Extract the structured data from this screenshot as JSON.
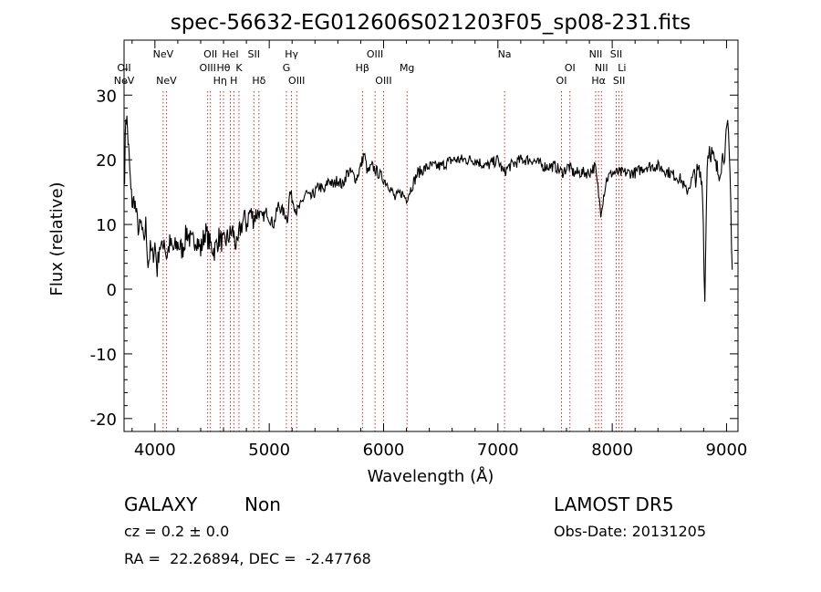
{
  "chart_data": {
    "type": "line",
    "title": "spec-56632-EG012606S021203F05_sp08-231.fits",
    "xlabel": "Wavelength (Å)",
    "ylabel": "Flux (relative)",
    "xlim": [
      3730,
      9100
    ],
    "ylim": [
      -22,
      38.5
    ],
    "xticks": [
      4000,
      5000,
      6000,
      7000,
      8000,
      9000
    ],
    "yticks": [
      -20,
      -10,
      0,
      10,
      20,
      30
    ],
    "series": [
      {
        "x": [
          3735,
          3745,
          3755,
          3765,
          3775,
          3790,
          3805,
          3820,
          3840,
          3860,
          3880,
          3900,
          3920,
          3940,
          3960,
          3980,
          4000,
          4020,
          4040,
          4060,
          4080,
          4100,
          4130,
          4160,
          4200,
          4240,
          4280,
          4320,
          4360,
          4400,
          4440,
          4480,
          4520,
          4560,
          4600,
          4640,
          4680,
          4720,
          4740,
          4760,
          4780,
          4800,
          4830,
          4860,
          4900,
          4940,
          4980,
          5000,
          5040,
          5080,
          5120,
          5160,
          5180,
          5200,
          5240,
          5280,
          5320,
          5360,
          5400,
          5440,
          5480,
          5520,
          5560,
          5600,
          5640,
          5680,
          5720,
          5760,
          5800,
          5830,
          5860,
          5900,
          5950,
          6000,
          6050,
          6100,
          6150,
          6200,
          6250,
          6300,
          6400,
          6500,
          6600,
          6700,
          6800,
          6900,
          7000,
          7050,
          7100,
          7200,
          7300,
          7400,
          7500,
          7560,
          7620,
          7660,
          7700,
          7800,
          7850,
          7900,
          7950,
          8000,
          8100,
          8200,
          8300,
          8400,
          8500,
          8600,
          8650,
          8700,
          8760,
          8790,
          8810,
          8830,
          8850,
          8870,
          8900,
          8930,
          8960,
          8990,
          9010,
          9030,
          9050
        ],
        "y": [
          18,
          27,
          26,
          23,
          20,
          15,
          13,
          14,
          11,
          9,
          10,
          7,
          10,
          4,
          6,
          5,
          7,
          3,
          7,
          6,
          8,
          5,
          7,
          6,
          7,
          6,
          9,
          7,
          8,
          6,
          9,
          7,
          6,
          8,
          7,
          8,
          9,
          6,
          9,
          10,
          11,
          10,
          12,
          11,
          12,
          11,
          12,
          11,
          10,
          13,
          12,
          11,
          15,
          14,
          12,
          13,
          15,
          14,
          15,
          16,
          15,
          17,
          16,
          17,
          16,
          18,
          18,
          17,
          19,
          21,
          18,
          19,
          18,
          17,
          16,
          14,
          15,
          14,
          16,
          18,
          19,
          19,
          20,
          20,
          20,
          19,
          20,
          18,
          19,
          20,
          20,
          19,
          19,
          18,
          19,
          18,
          18,
          18,
          19,
          12,
          17,
          18,
          18,
          18,
          19,
          19,
          18,
          17,
          15,
          17,
          18,
          16,
          -2,
          20,
          22,
          21,
          19,
          18,
          20,
          22,
          25,
          18,
          3
        ]
      }
    ],
    "lines": [
      {
        "label": "NeV",
        "x": 3726
      },
      {
        "label": "OII",
        "x": 3729
      },
      {
        "label": "NeV",
        "x": 4072
      },
      {
        "label": "NeV",
        "x": 4100
      },
      {
        "label": "OIII",
        "x": 4462
      },
      {
        "label": "OII",
        "x": 4486
      },
      {
        "label": "Hη",
        "x": 4570
      },
      {
        "label": "Hθ",
        "x": 4600
      },
      {
        "label": "HeI",
        "x": 4660
      },
      {
        "label": "H",
        "x": 4690
      },
      {
        "label": "K",
        "x": 4735
      },
      {
        "label": "SII",
        "x": 4865
      },
      {
        "label": "Hδ",
        "x": 4910
      },
      {
        "label": "G",
        "x": 5150
      },
      {
        "label": "Hγ",
        "x": 5195
      },
      {
        "label": "OIII",
        "x": 5240
      },
      {
        "label": "Hβ",
        "x": 5815
      },
      {
        "label": "OIII",
        "x": 5925
      },
      {
        "label": "OIII",
        "x": 6000
      },
      {
        "label": "Mg",
        "x": 6205
      },
      {
        "label": "Na",
        "x": 7058
      },
      {
        "label": "OI",
        "x": 7556
      },
      {
        "label": "OI",
        "x": 7630
      },
      {
        "label": "NII",
        "x": 7855
      },
      {
        "label": "Hα",
        "x": 7880
      },
      {
        "label": "NII",
        "x": 7905
      },
      {
        "label": "SII",
        "x": 8035
      },
      {
        "label": "SII",
        "x": 8060
      },
      {
        "label": "Li",
        "x": 8085
      }
    ]
  },
  "footer": {
    "object_class": "GALAXY",
    "subclass": "Non",
    "redshift": "cz = 0.2 ± 0.0",
    "coords": "RA =  22.26894, DEC =  -2.47768",
    "survey": "LAMOST DR5",
    "obs_date": "Obs-Date: 20131205"
  }
}
